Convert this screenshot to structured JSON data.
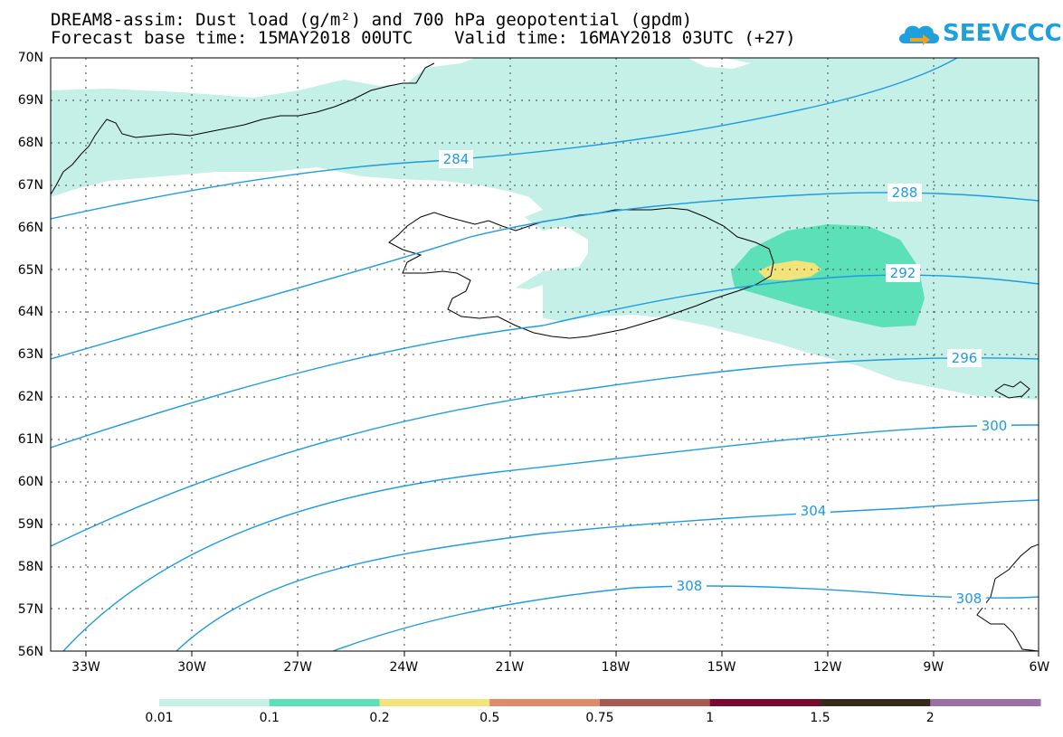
{
  "title": {
    "line1": "DREAM8-assim: Dust load (g/m²) and 700 hPa geopotential (gpdm)",
    "line2": "Forecast base time: 15MAY2018 00UTC    Valid time: 16MAY2018 03UTC (+27)"
  },
  "logo": {
    "text": "SEEVCCC",
    "color": "#1ea0dc"
  },
  "axes": {
    "lat_labels": [
      "70N",
      "69N",
      "68N",
      "67N",
      "66N",
      "65N",
      "64N",
      "63N",
      "62N",
      "61N",
      "60N",
      "59N",
      "58N",
      "57N",
      "56N"
    ],
    "lon_labels": [
      "33W",
      "30W",
      "27W",
      "24W",
      "21W",
      "18W",
      "15W",
      "12W",
      "9W",
      "6W"
    ]
  },
  "contours": [
    {
      "value": "284"
    },
    {
      "value": "288"
    },
    {
      "value": "292"
    },
    {
      "value": "296"
    },
    {
      "value": "300"
    },
    {
      "value": "304"
    },
    {
      "value": "308"
    },
    {
      "value": "308"
    }
  ],
  "colorbar": {
    "colors": [
      "#c5f0e8",
      "#5ce0b8",
      "#f2e47a",
      "#e08a6a",
      "#a85a50",
      "#7a0a30",
      "#3a2a1a",
      "#9a70a8"
    ],
    "labels": [
      "0.01",
      "0.1",
      "0.2",
      "0.5",
      "0.75",
      "1",
      "1.5",
      "2"
    ]
  },
  "colors": {
    "contour": "#1e9be0",
    "dust_low": "#c5f0e8",
    "dust_mid": "#5ce0b8",
    "dust_high": "#f2e47a"
  }
}
